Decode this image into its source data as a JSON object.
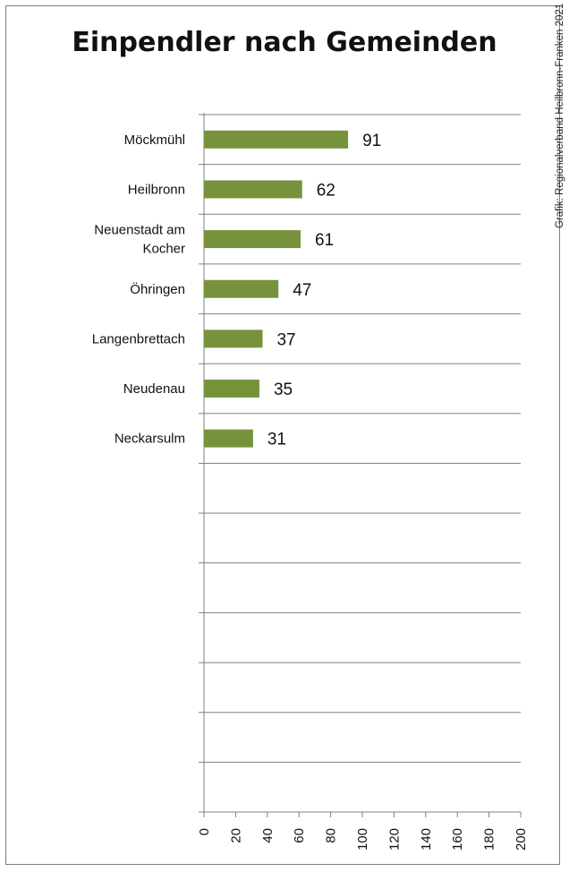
{
  "chart_data": {
    "type": "bar",
    "orientation": "horizontal",
    "title": "Einpendler nach Gemeinden",
    "categories": [
      "Möckmühl",
      "Heilbronn",
      "Neuenstadt am Kocher",
      "Öhringen",
      "Langenbrettach",
      "Neudenau",
      "Neckarsulm"
    ],
    "category_lines": [
      [
        "Möckmühl"
      ],
      [
        "Heilbronn"
      ],
      [
        "Neuenstadt am",
        "Kocher"
      ],
      [
        "Öhringen"
      ],
      [
        "Langenbrettach"
      ],
      [
        "Neudenau"
      ],
      [
        "Neckarsulm"
      ]
    ],
    "values": [
      91,
      62,
      61,
      47,
      37,
      35,
      31
    ],
    "xlim": [
      0,
      200
    ],
    "xticks": [
      0,
      20,
      40,
      60,
      80,
      100,
      120,
      140,
      160,
      180,
      200
    ],
    "slots": 14,
    "grid": true,
    "xlabel": "",
    "ylabel": "",
    "bar_color": "#76933c",
    "grid_color": "#808080"
  },
  "credit": "Grafik: Regionalverband Heilbronn-Franken 2021"
}
